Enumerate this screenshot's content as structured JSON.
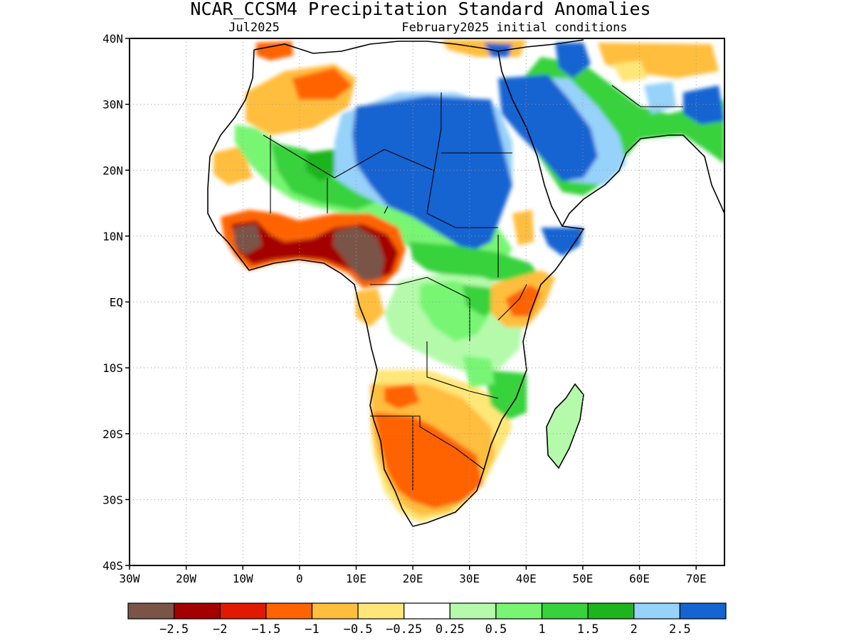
{
  "header": {
    "title": "NCAR_CCSM4 Precipitation Standard Anomalies",
    "target_month": "Jul2025",
    "init_conditions": "February2025 initial conditions"
  },
  "map": {
    "region": "Africa",
    "lon_range": [
      -30,
      75
    ],
    "lat_range": [
      -40,
      40
    ],
    "lat_ticks": [
      "40N",
      "30N",
      "20N",
      "10N",
      "EQ",
      "10S",
      "20S",
      "30S",
      "40S"
    ],
    "lon_ticks": [
      "30W",
      "20W",
      "10W",
      "0",
      "10E",
      "20E",
      "30E",
      "40E",
      "50E",
      "60E",
      "70E"
    ],
    "gridlines": "dotted",
    "land_outline": true
  },
  "colorbar": {
    "colors": [
      "#7a5547",
      "#a50000",
      "#e11900",
      "#ff6400",
      "#ffbe3c",
      "#ffe678",
      "#ffffff",
      "#b4faaa",
      "#78f573",
      "#37d23c",
      "#1eb41e",
      "#96d2fa",
      "#1464d2"
    ],
    "labels": [
      "−2.5",
      "−2",
      "−1.5",
      "−1",
      "−0.5",
      "−0.25",
      "0.25",
      "0.5",
      "1",
      "1.5",
      "2",
      "2.5"
    ]
  },
  "anomaly_regions": [
    {
      "name": "sahara-wet",
      "level": "2.5"
    },
    {
      "name": "arabia-wet",
      "level": "2.5"
    },
    {
      "name": "sahel-wet",
      "level": "1.5"
    },
    {
      "name": "guinea-coast-dry",
      "level": "-2.5"
    },
    {
      "name": "cameroon-dry",
      "level": "-2.5"
    },
    {
      "name": "southern-africa-dry",
      "level": "-1"
    },
    {
      "name": "east-africa-dry",
      "level": "-1"
    },
    {
      "name": "central-africa-wet",
      "level": "0.5"
    }
  ]
}
